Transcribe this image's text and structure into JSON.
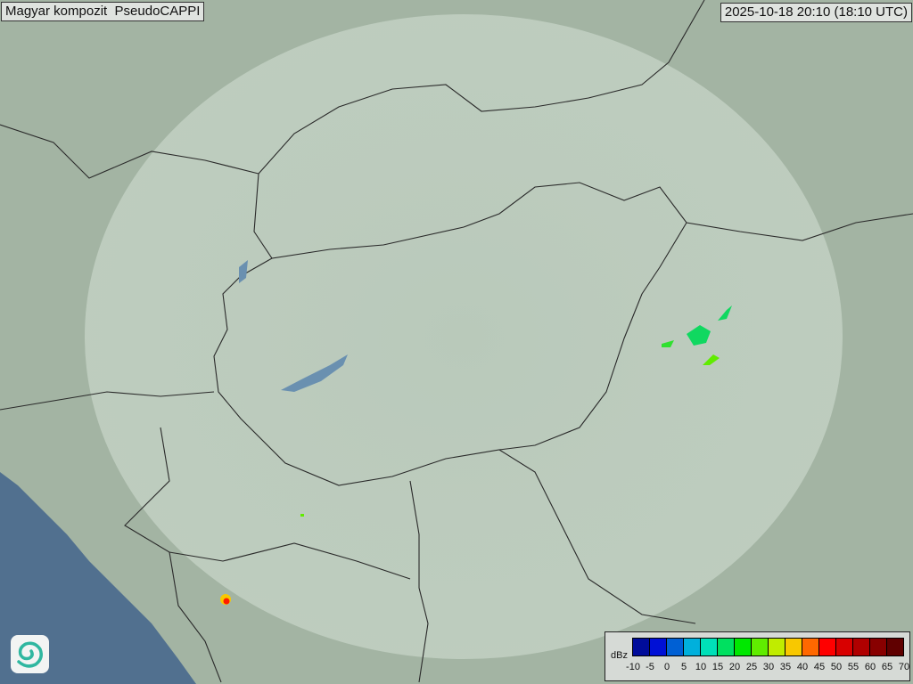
{
  "header": {
    "title": "Magyar kompozit  PseudoCAPPI",
    "timestamp": "2025-10-18 20:10 (18:10 UTC)"
  },
  "map": {
    "land_color": "#a3b4a3",
    "coverage_color": "#c8d6c8",
    "sea_color": "#51708f",
    "border_color": "#2a2a2a",
    "echoes": [
      {
        "label": "east",
        "color": "#10d860"
      },
      {
        "label": "southwest",
        "color": "#ff1a00"
      }
    ]
  },
  "legend": {
    "unit": "dBz",
    "ticks": [
      "-10",
      "-5",
      "0",
      "5",
      "10",
      "15",
      "20",
      "25",
      "30",
      "35",
      "40",
      "45",
      "50",
      "55",
      "60",
      "65",
      "70"
    ],
    "colors": [
      "#000c9a",
      "#0010d6",
      "#0060d4",
      "#00b0dc",
      "#00e0b8",
      "#00e060",
      "#00e800",
      "#60ec00",
      "#c0ec00",
      "#f8c800",
      "#ff6800",
      "#ff0000",
      "#d80000",
      "#b00000",
      "#880000",
      "#600000"
    ]
  },
  "logo": {
    "name": "met-service-swirl-logo"
  }
}
